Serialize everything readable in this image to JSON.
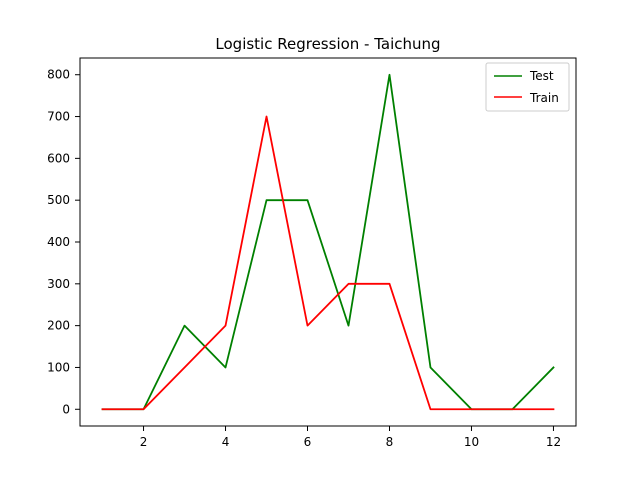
{
  "chart_data": {
    "type": "line",
    "title": "Logistic Regression - Taichung",
    "xlabel": "",
    "ylabel": "",
    "xlim": [
      0.45,
      12.55
    ],
    "ylim": [
      -40,
      840
    ],
    "xticks": [
      2,
      4,
      6,
      8,
      10,
      12
    ],
    "yticks": [
      0,
      100,
      200,
      300,
      400,
      500,
      600,
      700,
      800
    ],
    "x": [
      1,
      2,
      3,
      4,
      5,
      6,
      7,
      8,
      9,
      10,
      11,
      12
    ],
    "series": [
      {
        "name": "Test",
        "color": "#008000",
        "values": [
          0,
          0,
          200,
          100,
          500,
          500,
          200,
          800,
          100,
          0,
          0,
          100
        ]
      },
      {
        "name": "Train",
        "color": "#ff0000",
        "values": [
          0,
          0,
          100,
          200,
          700,
          200,
          300,
          300,
          0,
          0,
          0,
          0
        ]
      }
    ],
    "legend": {
      "position": "top-right",
      "entries": [
        "Test",
        "Train"
      ]
    },
    "grid": false
  }
}
